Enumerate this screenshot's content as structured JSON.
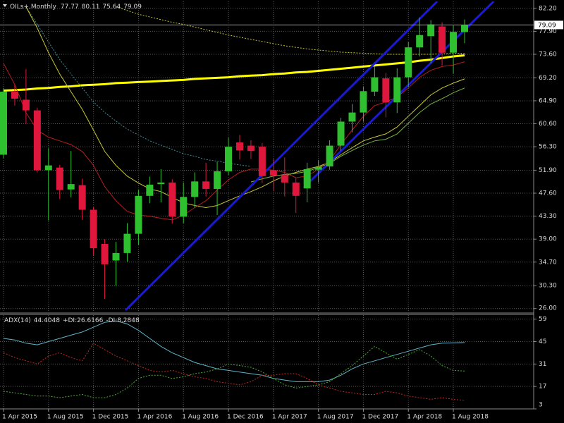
{
  "chart_data": [
    {
      "type": "candlestick",
      "title": "OILs+,Monthly",
      "categories": [
        "1 Apr 2015",
        null,
        null,
        null,
        "1 Aug 2015",
        null,
        null,
        null,
        "1 Dec 2015",
        null,
        null,
        null,
        "1 Apr 2016",
        null,
        null,
        null,
        "1 Aug 2016",
        null,
        null,
        null,
        "1 Dec 2016",
        null,
        null,
        null,
        "1 Apr 2017",
        null,
        null,
        null,
        "1 Aug 2017",
        null,
        null,
        null,
        "1 Dec 2017",
        null,
        null,
        null,
        "1 Apr 2018",
        null,
        null,
        null,
        "1 Aug 2018",
        null
      ],
      "open": [
        54.8,
        66.6,
        65.1,
        63.1,
        51.9,
        52.4,
        48.3,
        49.1,
        44.5,
        38.1,
        35.0,
        36.4,
        40.0,
        47.1,
        49.3,
        49.6,
        43.2,
        46.9,
        49.8,
        48.4,
        51.7,
        57.1,
        56.5,
        56.3,
        51.9,
        51.0,
        49.6,
        48.5,
        52.0,
        52.6,
        56.5,
        61.0,
        62.7,
        66.6,
        69.1,
        64.6,
        69.3,
        74.9,
        77.0,
        78.8,
        73.9,
        77.77
      ],
      "high": [
        67.3,
        68.0,
        70.8,
        63.6,
        56.0,
        52.9,
        55.5,
        50.3,
        45.0,
        39.0,
        38.5,
        42.0,
        48.3,
        50.7,
        52.1,
        50.2,
        49.6,
        51.5,
        53.3,
        53.5,
        58.0,
        58.5,
        57.5,
        57.0,
        54.0,
        54.3,
        50.5,
        53.3,
        53.8,
        57.5,
        61.7,
        64.3,
        67.5,
        71.3,
        70.1,
        71.0,
        75.9,
        80.5,
        80.0,
        79.6,
        79.0,
        80.11
      ],
      "low": [
        54.1,
        64.0,
        60.5,
        51.5,
        42.5,
        46.5,
        46.8,
        42.6,
        36.0,
        27.8,
        30.3,
        34.8,
        37.9,
        45.7,
        45.9,
        41.9,
        42.0,
        44.9,
        47.0,
        43.5,
        51.0,
        53.9,
        54.0,
        49.5,
        48.0,
        47.0,
        43.9,
        45.9,
        49.6,
        52.0,
        55.5,
        59.0,
        61.0,
        65.8,
        61.8,
        62.6,
        67.5,
        73.2,
        71.9,
        71.5,
        70.0,
        75.64
      ],
      "close": [
        66.6,
        65.3,
        63.1,
        51.9,
        52.8,
        48.2,
        49.3,
        44.5,
        37.3,
        34.3,
        36.4,
        40.0,
        47.1,
        49.2,
        49.6,
        43.2,
        46.9,
        49.8,
        48.4,
        51.7,
        56.3,
        55.6,
        55.5,
        50.8,
        50.9,
        49.6,
        47.1,
        52.1,
        52.5,
        56.5,
        61.0,
        62.7,
        66.7,
        69.3,
        64.6,
        69.3,
        74.9,
        77.2,
        79.2,
        73.9,
        77.8,
        79.09
      ],
      "up_color": "#2ec02e",
      "down_color": "#e0173c",
      "overlays": [
        {
          "color": "#ffff00",
          "width": 3,
          "dash": false,
          "values": [
            66.8,
            66.9,
            67.0,
            67.2,
            67.3,
            67.5,
            67.6,
            67.8,
            67.9,
            68.0,
            68.2,
            68.3,
            68.4,
            68.5,
            68.6,
            68.7,
            68.8,
            69.0,
            69.1,
            69.2,
            69.3,
            69.5,
            69.6,
            69.7,
            69.9,
            70.0,
            70.2,
            70.3,
            70.5,
            70.7,
            70.9,
            71.1,
            71.3,
            71.5,
            71.7,
            71.9,
            72.1,
            72.4,
            72.6,
            72.9,
            73.2,
            73.4
          ]
        },
        {
          "color": "#c8c832",
          "width": 1,
          "dash": true,
          "values": [
            null,
            null,
            null,
            null,
            null,
            null,
            null,
            null,
            null,
            null,
            82.5,
            81.8,
            81.1,
            80.6,
            80.1,
            79.6,
            79.2,
            78.7,
            78.2,
            77.7,
            77.2,
            76.8,
            76.4,
            76.0,
            75.6,
            75.2,
            74.9,
            74.6,
            74.4,
            74.2,
            74.0,
            73.9,
            73.8,
            73.7,
            73.6,
            73.6,
            73.6,
            73.6,
            73.6,
            73.7,
            73.8,
            73.8
          ]
        },
        {
          "color": "#3c8c96",
          "width": 1,
          "dash": true,
          "values": [
            null,
            null,
            82.5,
            79.2,
            75.9,
            72.6,
            69.9,
            67.3,
            64.7,
            62.7,
            61.1,
            59.6,
            58.5,
            57.4,
            56.6,
            55.8,
            55.0,
            54.5,
            53.9,
            53.6,
            53.2,
            52.9,
            52.6,
            null,
            null,
            null,
            null,
            null,
            null,
            null,
            null,
            null,
            null,
            null,
            null,
            null,
            null,
            null,
            null,
            null,
            null,
            null
          ]
        },
        {
          "color": "#c8c832",
          "width": 1,
          "dash": false,
          "values": [
            null,
            null,
            82.5,
            78.5,
            73.9,
            69.9,
            66.6,
            63.3,
            59.4,
            55.4,
            52.8,
            50.8,
            49.5,
            48.4,
            47.9,
            46.8,
            45.8,
            45.3,
            44.9,
            45.3,
            46.2,
            47.1,
            47.9,
            48.8,
            49.9,
            50.8,
            51.5,
            52.1,
            52.6,
            53.4,
            54.8,
            56.1,
            57.4,
            58.1,
            58.7,
            60.0,
            62.0,
            64.0,
            66.0,
            67.3,
            68.2,
            69.0
          ]
        },
        {
          "color": "#b41e1e",
          "width": 1,
          "dash": false,
          "values": [
            71.9,
            67.9,
            62.7,
            59.4,
            58.1,
            57.4,
            56.7,
            55.4,
            52.8,
            48.8,
            46.2,
            44.2,
            43.5,
            43.3,
            42.9,
            42.6,
            43.5,
            44.9,
            46.2,
            48.2,
            50.1,
            51.5,
            52.1,
            52.1,
            51.9,
            51.5,
            50.5,
            50.8,
            52.1,
            53.7,
            56.7,
            59.4,
            62.0,
            64.0,
            64.7,
            65.6,
            67.3,
            69.3,
            70.6,
            71.3,
            71.6,
            72.2
          ]
        },
        {
          "color": "#78b43c",
          "width": 1,
          "dash": false,
          "values": [
            null,
            null,
            null,
            null,
            null,
            null,
            null,
            null,
            null,
            null,
            null,
            null,
            null,
            null,
            null,
            null,
            null,
            null,
            null,
            null,
            null,
            null,
            49.7,
            50.3,
            50.8,
            51.1,
            51.3,
            51.7,
            52.4,
            53.2,
            54.5,
            55.6,
            56.6,
            57.4,
            57.7,
            58.7,
            60.7,
            62.7,
            64.3,
            65.3,
            66.4,
            67.3
          ]
        }
      ],
      "trendlines": [
        {
          "color": "#1a1ad2",
          "x": [
            10.85,
            38.56
          ],
          "y": [
            25.7,
            83.5
          ]
        },
        {
          "color": "#1a1ad2",
          "x": [
            26.77,
            43.58
          ],
          "y": [
            48.8,
            83.5
          ]
        }
      ],
      "ylim": [
        25.3,
        83.5
      ],
      "yticks": [
        {
          "value": 82.2,
          "label": "82.20"
        },
        {
          "value": 77.9,
          "label": "77.90"
        },
        {
          "value": 73.6,
          "label": "73.60"
        },
        {
          "value": 69.2,
          "label": "69.20"
        },
        {
          "value": 64.9,
          "label": "64.90"
        },
        {
          "value": 60.6,
          "label": "60.60"
        },
        {
          "value": 56.3,
          "label": "56.30"
        },
        {
          "value": 51.9,
          "label": "51.90"
        },
        {
          "value": 47.6,
          "label": "47.60"
        },
        {
          "value": 43.3,
          "label": "43.30"
        },
        {
          "value": 39.0,
          "label": "39.00"
        },
        {
          "value": 34.7,
          "label": "34.70"
        },
        {
          "value": 30.3,
          "label": "30.30"
        },
        {
          "value": 26.0,
          "label": "26.00"
        }
      ],
      "grid": true
    },
    {
      "type": "line",
      "series": [
        {
          "name": "ADX(14)",
          "color": "#5fb4c8",
          "dash": false,
          "values": [
            47,
            46,
            44,
            43,
            45,
            47,
            49,
            51,
            54,
            57,
            58,
            56,
            52,
            47,
            42,
            38,
            35,
            32,
            30,
            28,
            27,
            26,
            25,
            24,
            22,
            21,
            20,
            20,
            20,
            21,
            24,
            28,
            31,
            33,
            35,
            37,
            39,
            41,
            43,
            44,
            44.2,
            44.4048
          ]
        },
        {
          "name": "+DI:",
          "color": "#4caf32",
          "dash": true,
          "values": [
            14,
            13,
            12,
            11,
            11,
            10,
            11,
            12,
            10,
            10,
            12,
            16,
            22,
            24,
            24,
            22,
            23,
            25,
            26,
            28,
            31,
            30,
            29,
            26,
            22,
            18,
            16,
            17,
            18,
            20,
            25,
            30,
            36,
            42,
            38,
            34,
            37,
            40,
            36,
            30,
            27,
            26.6166
          ]
        },
        {
          "name": "-DI:",
          "color": "#c0281e",
          "dash": true,
          "values": [
            38,
            35,
            33,
            31,
            36,
            38,
            35,
            33,
            44,
            40,
            36,
            33,
            30,
            27,
            26,
            27,
            25,
            23,
            22,
            20,
            19,
            18,
            20,
            24,
            24,
            25,
            25,
            22,
            18,
            16,
            14,
            13,
            12,
            12,
            14,
            13,
            11,
            10,
            9,
            10,
            9,
            8.2848
          ]
        }
      ],
      "ylim": [
        3,
        61.5
      ],
      "yticks": [
        59,
        45,
        31,
        17,
        3
      ],
      "grid": true
    }
  ]
}
